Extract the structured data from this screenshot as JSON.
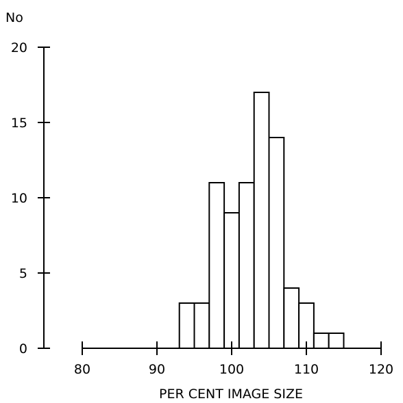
{
  "chart_data": {
    "type": "bar",
    "title": "",
    "xlabel": "PER CENT IMAGE SIZE",
    "ylabel": "No",
    "xlim": [
      80,
      120
    ],
    "ylim": [
      0,
      20
    ],
    "x_ticks": [
      80,
      90,
      100,
      110,
      120
    ],
    "y_ticks": [
      0,
      5,
      10,
      15,
      20
    ],
    "bin_width": 2,
    "bins": [
      {
        "x0": 93,
        "x1": 95,
        "value": 3
      },
      {
        "x0": 95,
        "x1": 97,
        "value": 3
      },
      {
        "x0": 97,
        "x1": 99,
        "value": 11
      },
      {
        "x0": 99,
        "x1": 101,
        "value": 9
      },
      {
        "x0": 101,
        "x1": 103,
        "value": 11
      },
      {
        "x0": 103,
        "x1": 105,
        "value": 17
      },
      {
        "x0": 105,
        "x1": 107,
        "value": 14
      },
      {
        "x0": 107,
        "x1": 109,
        "value": 4
      },
      {
        "x0": 109,
        "x1": 111,
        "value": 3
      },
      {
        "x0": 111,
        "x1": 113,
        "value": 1
      },
      {
        "x0": 113,
        "x1": 115,
        "value": 1
      }
    ],
    "grid": false
  }
}
